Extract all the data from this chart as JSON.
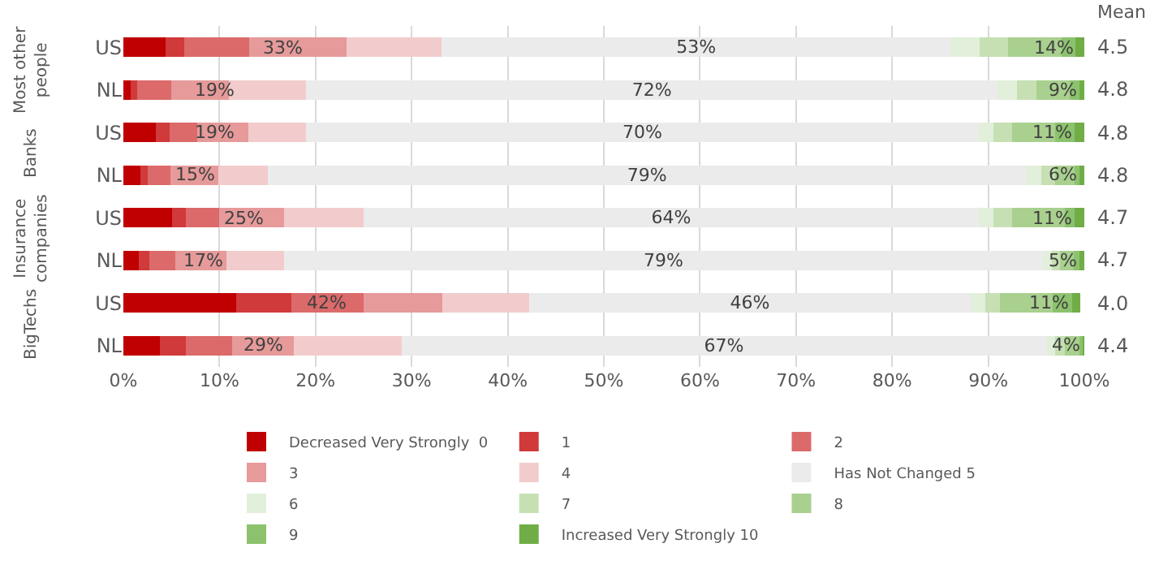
{
  "chart_data": {
    "type": "bar",
    "orientation": "horizontal",
    "stacked": true,
    "categories": [
      "US",
      "NL",
      "US",
      "NL",
      "US",
      "NL",
      "US",
      "NL"
    ],
    "series": [
      {
        "name": "Decreased Very Strongly  0",
        "color": "#c00000",
        "values": [
          4.4,
          0.8,
          3.4,
          1.8,
          5.1,
          1.6,
          11.7,
          3.8
        ]
      },
      {
        "name": "1",
        "color": "#d03a3a",
        "values": [
          1.9,
          0.6,
          1.4,
          0.7,
          1.4,
          1.1,
          5.8,
          2.7
        ]
      },
      {
        "name": "2",
        "color": "#dc6a6a",
        "values": [
          6.8,
          3.6,
          2.9,
          2.4,
          3.5,
          2.7,
          7.5,
          4.8
        ]
      },
      {
        "name": "3",
        "color": "#e69a9a",
        "values": [
          10.1,
          6.0,
          5.3,
          5.0,
          6.7,
          5.3,
          8.2,
          6.4
        ]
      },
      {
        "name": "4",
        "color": "#f2cccc",
        "values": [
          9.9,
          8.0,
          6.0,
          5.1,
          8.3,
          6.0,
          9.0,
          11.3
        ]
      },
      {
        "name": "Has Not Changed 5",
        "color": "#ebebeb",
        "values": [
          53,
          72,
          70,
          79,
          64,
          79,
          46,
          67
        ],
        "value_labels": [
          "53%",
          "72%",
          "70%",
          "79%",
          "64%",
          "79%",
          "46%",
          "67%"
        ]
      },
      {
        "name": "6",
        "color": "#e2efda",
        "values": [
          3,
          2,
          1.5,
          1.5,
          1.5,
          0.9,
          1.5,
          1
        ]
      },
      {
        "name": "7",
        "color": "#c6e0b4",
        "values": [
          3,
          2,
          2,
          1.5,
          2,
          0.9,
          1.5,
          1
        ]
      },
      {
        "name": "8",
        "color": "#a9d08e",
        "values": [
          5.5,
          3.5,
          4.5,
          2,
          5.5,
          1.4,
          5.5,
          1.5
        ]
      },
      {
        "name": "9",
        "color": "#8cc26e",
        "values": [
          1.5,
          1,
          2,
          0.5,
          1,
          0.6,
          2,
          0.3
        ]
      },
      {
        "name": "Increased Very Strongly 10",
        "color": "#70ad47",
        "values": [
          1,
          0.5,
          1,
          0.5,
          1,
          0.5,
          0.9,
          0.2
        ]
      }
    ],
    "xlim": [
      0,
      100
    ],
    "xticks": [
      {
        "value": 0,
        "label": "0%"
      },
      {
        "value": 10,
        "label": "10%"
      },
      {
        "value": 20,
        "label": "20%"
      },
      {
        "value": 30,
        "label": "30%"
      },
      {
        "value": 40,
        "label": "40%"
      },
      {
        "value": 50,
        "label": "50%"
      },
      {
        "value": 60,
        "label": "60%"
      },
      {
        "value": 70,
        "label": "70%"
      },
      {
        "value": 80,
        "label": "80%"
      },
      {
        "value": 90,
        "label": "90%"
      },
      {
        "value": 100,
        "label": "100%"
      }
    ],
    "grid": "x",
    "legend": "bottom",
    "annotations": [
      "Mean",
      "4.5",
      "4.8",
      "4.8",
      "4.8",
      "4.7",
      "4.7",
      "4.0",
      "4.4",
      "Most other people",
      "Banks",
      "Insurance companies",
      "BigTechs",
      "33%",
      "19%",
      "19%",
      "15%",
      "25%",
      "17%",
      "42%",
      "29%",
      "14%",
      "9%",
      "11%",
      "6%",
      "11%",
      "5%",
      "11%",
      "4%"
    ]
  }
}
